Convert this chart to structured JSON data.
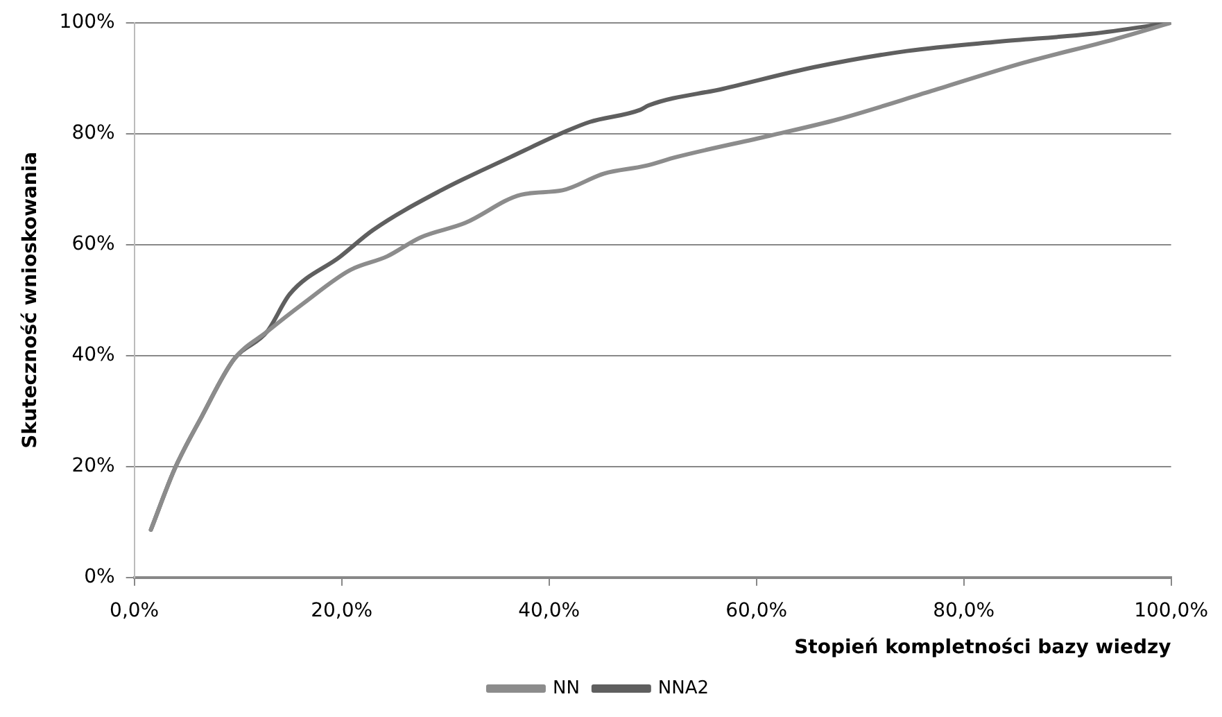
{
  "chart_data": {
    "type": "line",
    "xlabel": "Stopień kompletności bazy wiedzy",
    "ylabel": "Skuteczność wnioskowania",
    "series": [
      {
        "name": "NN",
        "color": "#8c8c8c",
        "x": [
          1.6,
          3.9,
          6.5,
          9.6,
          12.8,
          16.3,
          20.8,
          24.4,
          27.6,
          31.9,
          37.3,
          41.3,
          45.3,
          49.3,
          52.3,
          61.2,
          67.9,
          76.9,
          85.8,
          94.5,
          100
        ],
        "values": [
          8.6,
          19.6,
          29,
          39.3,
          44.3,
          49.4,
          55.4,
          57.9,
          61.3,
          63.9,
          69,
          69.8,
          72.8,
          74.2,
          75.8,
          79.6,
          82.6,
          87.7,
          92.8,
          97,
          100
        ]
      },
      {
        "name": "NNA2",
        "color": "#5f5f5f",
        "x": [
          1.6,
          3.9,
          6.5,
          9.6,
          12.8,
          15,
          19.9,
          23,
          29.6,
          36.3,
          41.6,
          43.9,
          48.8,
          49.6,
          56.8,
          65.6,
          74.5,
          83.4,
          92.3,
          100
        ],
        "values": [
          8.6,
          19.6,
          29,
          39.3,
          44.3,
          51.1,
          57.9,
          62.6,
          69.8,
          75.8,
          80.4,
          82.1,
          84.3,
          85.1,
          88.1,
          92,
          94.9,
          96.6,
          98,
          100
        ]
      }
    ],
    "xlim": [
      0,
      100
    ],
    "xticks": [
      {
        "value": 0,
        "label": "0,0%"
      },
      {
        "value": 20,
        "label": "20,0%"
      },
      {
        "value": 40,
        "label": "40,0%"
      },
      {
        "value": 60,
        "label": "60,0%"
      },
      {
        "value": 80,
        "label": "80,0%"
      },
      {
        "value": 100,
        "label": "100,0%"
      }
    ],
    "ylim": [
      0,
      100
    ],
    "yticks": [
      {
        "value": 0,
        "label": "0%"
      },
      {
        "value": 20,
        "label": "20%"
      },
      {
        "value": 40,
        "label": "40%"
      },
      {
        "value": 60,
        "label": "60%"
      },
      {
        "value": 80,
        "label": "80%"
      },
      {
        "value": 100,
        "label": "100%"
      }
    ],
    "grid": "y",
    "legend": "bottom",
    "marker": "none",
    "line_style": "solid"
  }
}
